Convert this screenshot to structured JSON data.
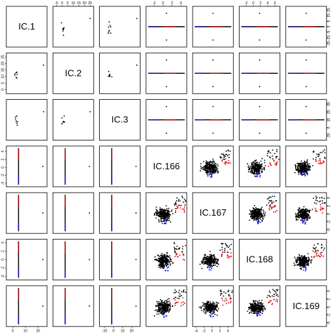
{
  "chart_data": {
    "type": "scatter",
    "variables": [
      "IC.1",
      "IC.2",
      "IC.3",
      "IC.166",
      "IC.167",
      "IC.168",
      "IC.169"
    ],
    "colors": {
      "main": "#000000",
      "high": "#e00000",
      "low": "#1010e0"
    },
    "tick_labels": {
      "top": [
        {
          "col": 1,
          "labels": [
            "-5",
            "0",
            "5",
            "10",
            "15",
            "20",
            "25"
          ],
          "range": [
            -7,
            27
          ]
        },
        {
          "col": 3,
          "labels": [
            "-2",
            "0",
            "2",
            "4"
          ],
          "range": [
            -3.5,
            5
          ]
        },
        {
          "col": 5,
          "labels": [
            "-2",
            "0",
            "2",
            "4",
            "6"
          ],
          "range": [
            -3.5,
            7
          ]
        }
      ],
      "bottom": [
        {
          "col": 0,
          "labels": [
            "0",
            "10",
            "20"
          ],
          "range": [
            -4,
            26
          ]
        },
        {
          "col": 2,
          "labels": [
            "-10",
            "0",
            "10",
            "20"
          ],
          "range": [
            -14,
            28
          ]
        },
        {
          "col": 4,
          "labels": [
            "-4",
            "-2",
            "0",
            "2",
            "4"
          ],
          "range": [
            -4.5,
            5
          ]
        }
      ],
      "left": [
        {
          "row": 1,
          "labels": [
            "0",
            "5",
            "10",
            "15",
            "20",
            "25"
          ],
          "range": [
            -2,
            27
          ]
        },
        {
          "row": 3,
          "labels": [
            "-4",
            "-2",
            "0",
            "2",
            "4"
          ],
          "range": [
            -4.5,
            5
          ]
        },
        {
          "row": 5,
          "labels": [
            "-4",
            "-2",
            "0",
            "2",
            "4"
          ],
          "range": [
            -4.5,
            4.5
          ]
        }
      ],
      "right": [
        {
          "row": 0,
          "labels": [
            "-15",
            "-10",
            "-5",
            "0",
            "5",
            "10",
            "15"
          ],
          "range": [
            -17,
            17
          ]
        },
        {
          "row": 2,
          "labels": [
            "-10",
            "0",
            "10",
            "20",
            "30"
          ],
          "range": [
            -14,
            34
          ]
        },
        {
          "row": 4,
          "labels": [
            "-4",
            "-2",
            "0",
            "2",
            "4"
          ],
          "range": [
            -4.5,
            5
          ]
        },
        {
          "row": 6,
          "labels": [
            "-4",
            "-2",
            "0",
            "2",
            "4"
          ],
          "range": [
            -4.5,
            5
          ]
        }
      ]
    }
  }
}
